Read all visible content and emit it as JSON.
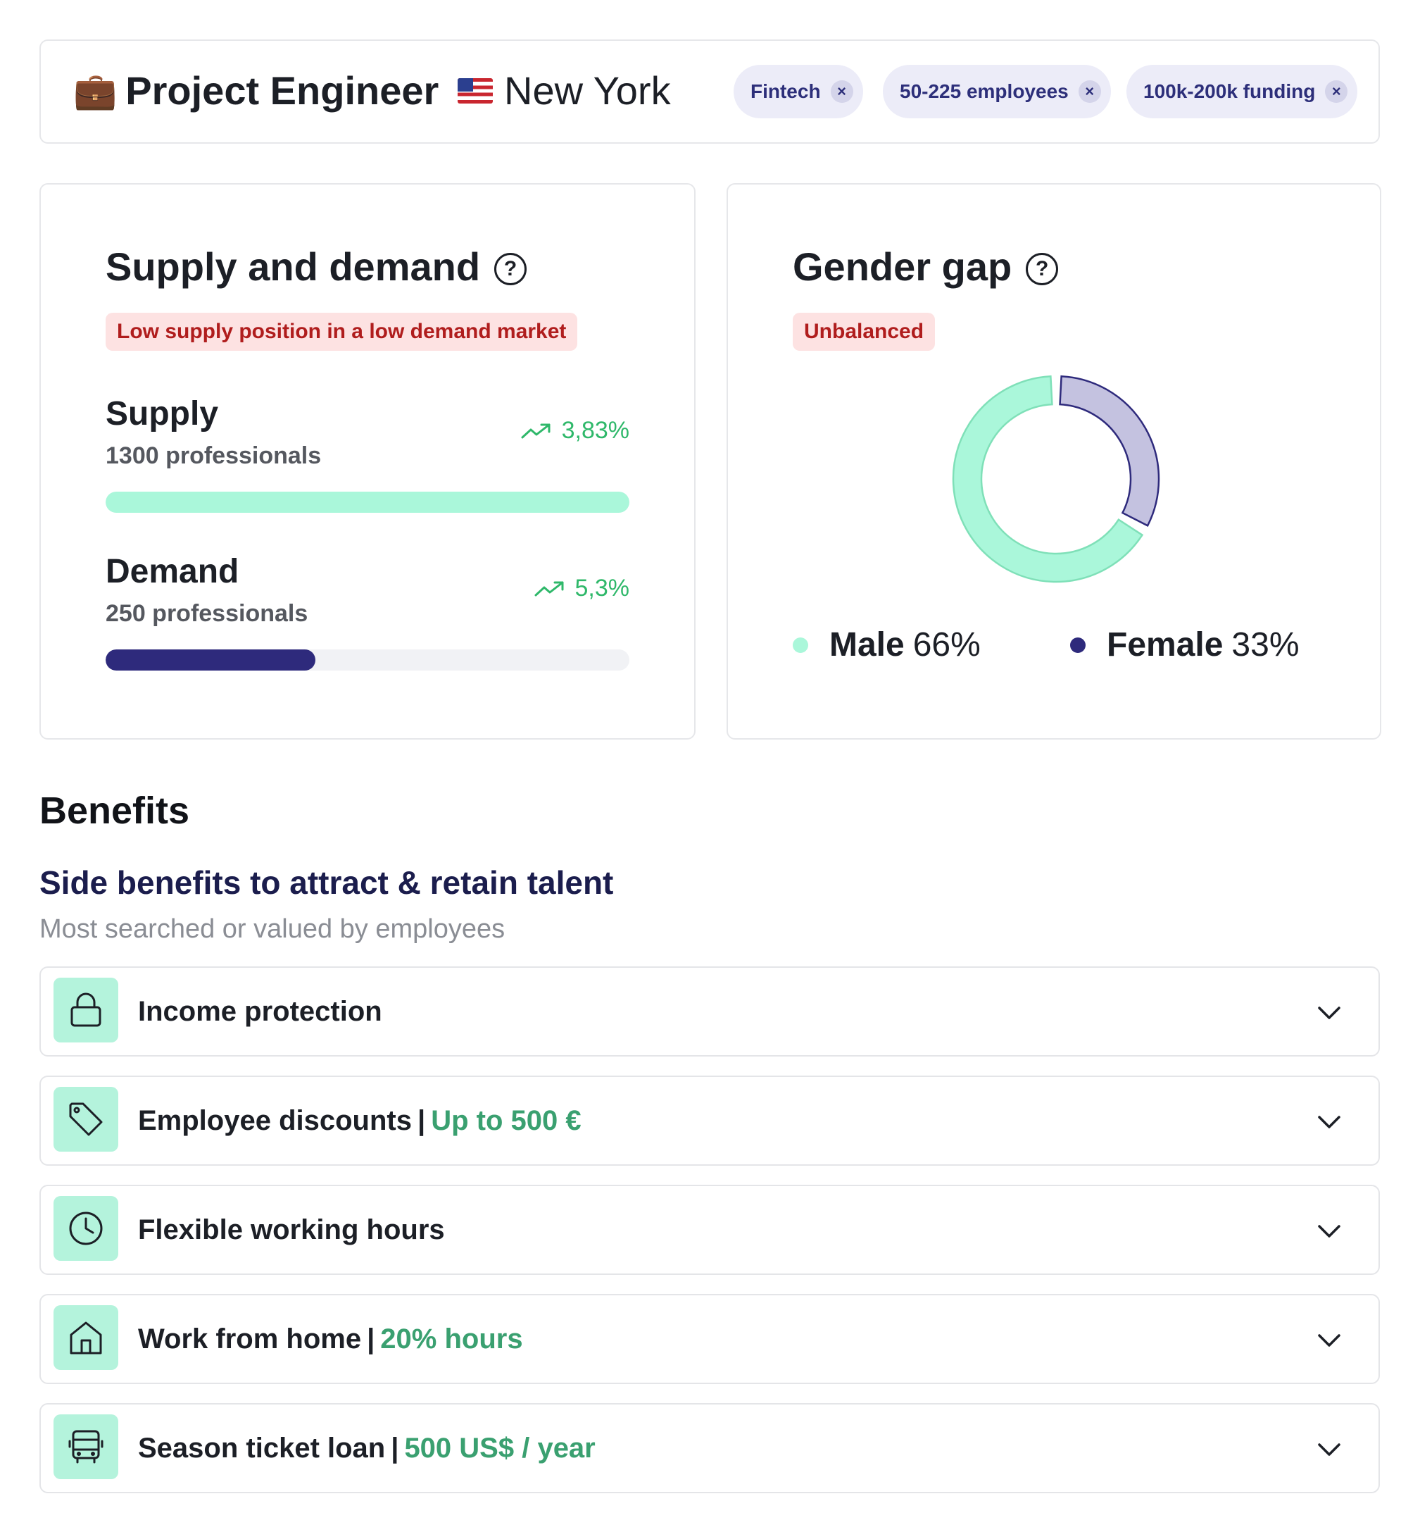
{
  "header": {
    "job_emoji": "💼",
    "job_title": "Project Engineer",
    "location": "New York",
    "filters": [
      {
        "label": "Fintech",
        "remove": "×"
      },
      {
        "label": "50-225 employees",
        "remove": "×"
      },
      {
        "label": "100k-200k funding",
        "remove": "×"
      }
    ]
  },
  "supply_demand": {
    "title": "Supply and demand",
    "help": "?",
    "badge": "Low supply position in a low demand market",
    "supply": {
      "label": "Supply",
      "sub": "1300 professionals",
      "trend": "3,83%",
      "fill_fraction": 1.0,
      "color": "#aaf7da"
    },
    "demand": {
      "label": "Demand",
      "sub": "250 professionals",
      "trend": "5,3%",
      "fill_fraction": 0.4,
      "color": "#2e2a7c"
    }
  },
  "gender_gap": {
    "title": "Gender gap",
    "help": "?",
    "badge": "Unbalanced",
    "male": {
      "label": "Male",
      "pct_text": "66%",
      "value": 66,
      "color": "#aaf7da",
      "stroke": "#7fe0b8"
    },
    "female": {
      "label": "Female",
      "pct_text": "33%",
      "value": 33,
      "color": "#c4c2e0",
      "stroke": "#2e2a7c"
    }
  },
  "benefits": {
    "heading": "Benefits",
    "sub_heading": "Side benefits to attract & retain talent",
    "caption": "Most searched or valued by employees",
    "items": [
      {
        "label": "Income protection",
        "sep": "",
        "extra": "",
        "icon": "lock-icon"
      },
      {
        "label": "Employee discounts",
        "sep": "|",
        "extra": "Up to 500 €",
        "icon": "tag-icon"
      },
      {
        "label": "Flexible working hours",
        "sep": "",
        "extra": "",
        "icon": "clock-icon"
      },
      {
        "label": "Work from home",
        "sep": "|",
        "extra": "20% hours",
        "icon": "home-icon"
      },
      {
        "label": "Season ticket loan",
        "sep": "|",
        "extra": "500 US$ / year",
        "icon": "bus-icon"
      }
    ]
  }
}
